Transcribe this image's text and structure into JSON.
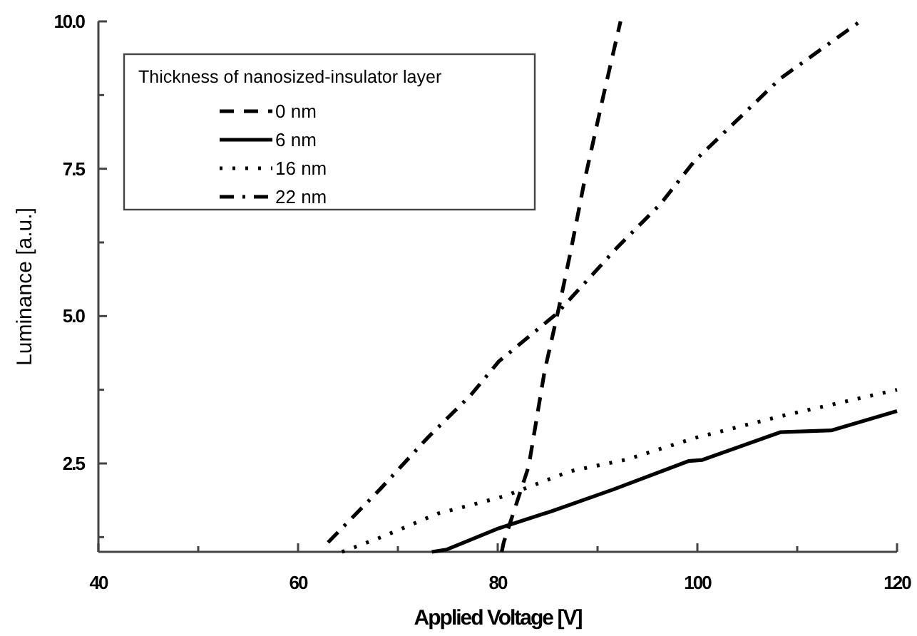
{
  "chart_data": {
    "type": "line",
    "xlabel": "Applied Voltage [V]",
    "ylabel": "Luminance [a.u.]",
    "legend_title": "Thickness of nanosized-insulator layer",
    "legend": "top left",
    "grid": false,
    "xlim": [
      40,
      120
    ],
    "xticks": [
      40,
      {
        "value": 50,
        "label": null
      },
      60,
      {
        "value": 70,
        "label": null
      },
      80,
      {
        "value": 90,
        "label": null
      },
      100,
      {
        "value": 110,
        "label": null
      },
      120
    ],
    "ylim": [
      1,
      10
    ],
    "yticks": [
      {
        "value": 1.25,
        "label": null
      },
      {
        "value": 2.5,
        "label": "2.5"
      },
      {
        "value": 3.75,
        "label": null
      },
      {
        "value": 5,
        "label": "5.0"
      },
      {
        "value": 6.25,
        "label": null
      },
      {
        "value": 7.5,
        "label": "7.5"
      },
      {
        "value": 8.75,
        "label": null
      },
      {
        "value": 10,
        "label": "10.0"
      }
    ],
    "series": [
      {
        "name": "0 nm",
        "color": "#000000",
        "line_style": "dashed",
        "x": [
          80.4,
          80.6,
          83.1,
          84.7,
          86.1,
          87.3,
          88.7,
          90.6,
          92.3
        ],
        "values": [
          1.0,
          1.16,
          2.45,
          4.07,
          5.12,
          6.09,
          7.3,
          8.75,
          10.0
        ]
      },
      {
        "name": "6 nm",
        "color": "#000000",
        "line_style": "solid",
        "x": [
          73.4,
          74.9,
          80.1,
          85.4,
          91.6,
          99.1,
          100.5,
          108.3,
          113.4,
          120
        ],
        "values": [
          1.0,
          1.04,
          1.4,
          1.69,
          2.06,
          2.54,
          2.56,
          3.03,
          3.06,
          3.39
        ]
      },
      {
        "name": "16 nm",
        "color": "#000000",
        "line_style": "dotted",
        "x": [
          64.4,
          68.2,
          74.0,
          80.6,
          87.3,
          93,
          99.7,
          108.3,
          120
        ],
        "values": [
          1.0,
          1.24,
          1.65,
          1.94,
          2.37,
          2.57,
          2.93,
          3.3,
          3.75
        ]
      },
      {
        "name": "22 nm",
        "color": "#000000",
        "line_style": "dashdot",
        "x": [
          63,
          68.2,
          73,
          77.3,
          80.1,
          85.9,
          92,
          96.3,
          99.7,
          103.4,
          108.3,
          116.3
        ],
        "values": [
          1.16,
          2.06,
          2.94,
          3.66,
          4.23,
          5.04,
          6.17,
          6.9,
          7.63,
          8.23,
          9.03,
          10.0
        ]
      }
    ]
  }
}
